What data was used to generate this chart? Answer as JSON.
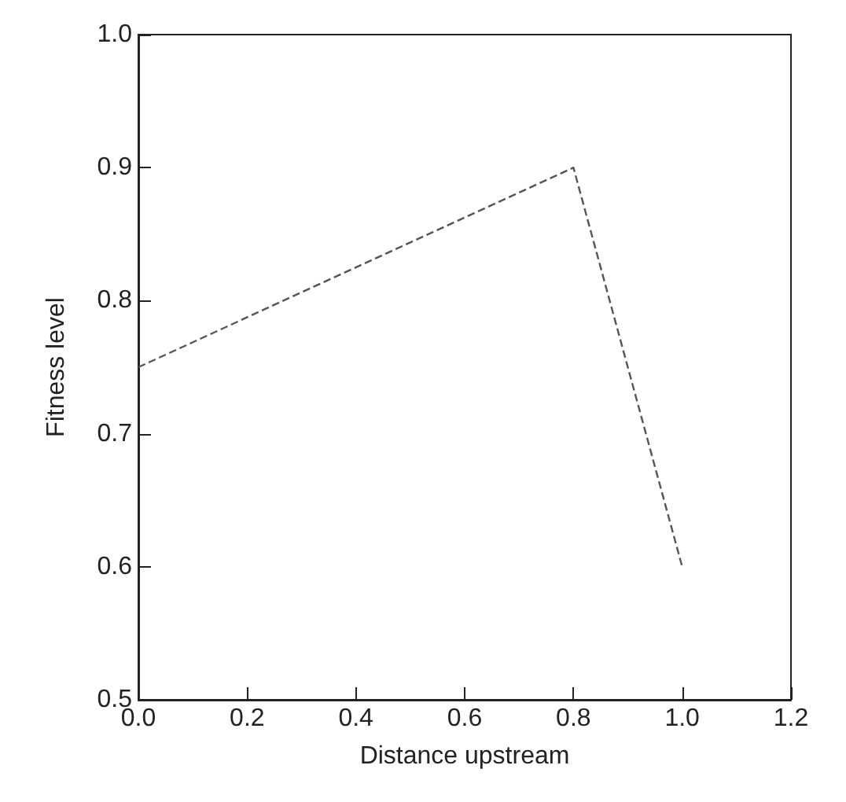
{
  "chart_data": {
    "type": "line",
    "xlabel": "Distance upstream",
    "ylabel": "Fitness level",
    "x": [
      0.0,
      0.8,
      1.0
    ],
    "series": [
      {
        "color": "#555555",
        "values": [
          0.75,
          0.9,
          0.6
        ]
      }
    ],
    "xlim": [
      0.0,
      1.2
    ],
    "xticks": [
      {
        "value": 0,
        "label": "0.0"
      },
      0.2,
      0.4,
      0.6,
      0.8,
      {
        "value": 1,
        "label": "1.0"
      },
      1.2
    ],
    "ylim": [
      0.5,
      1.0
    ],
    "yticks": [
      0.5,
      0.6,
      0.7,
      0.8,
      0.9,
      {
        "value": 1,
        "label": "1.0"
      }
    ],
    "marker": "none",
    "line_style": "dashed"
  }
}
